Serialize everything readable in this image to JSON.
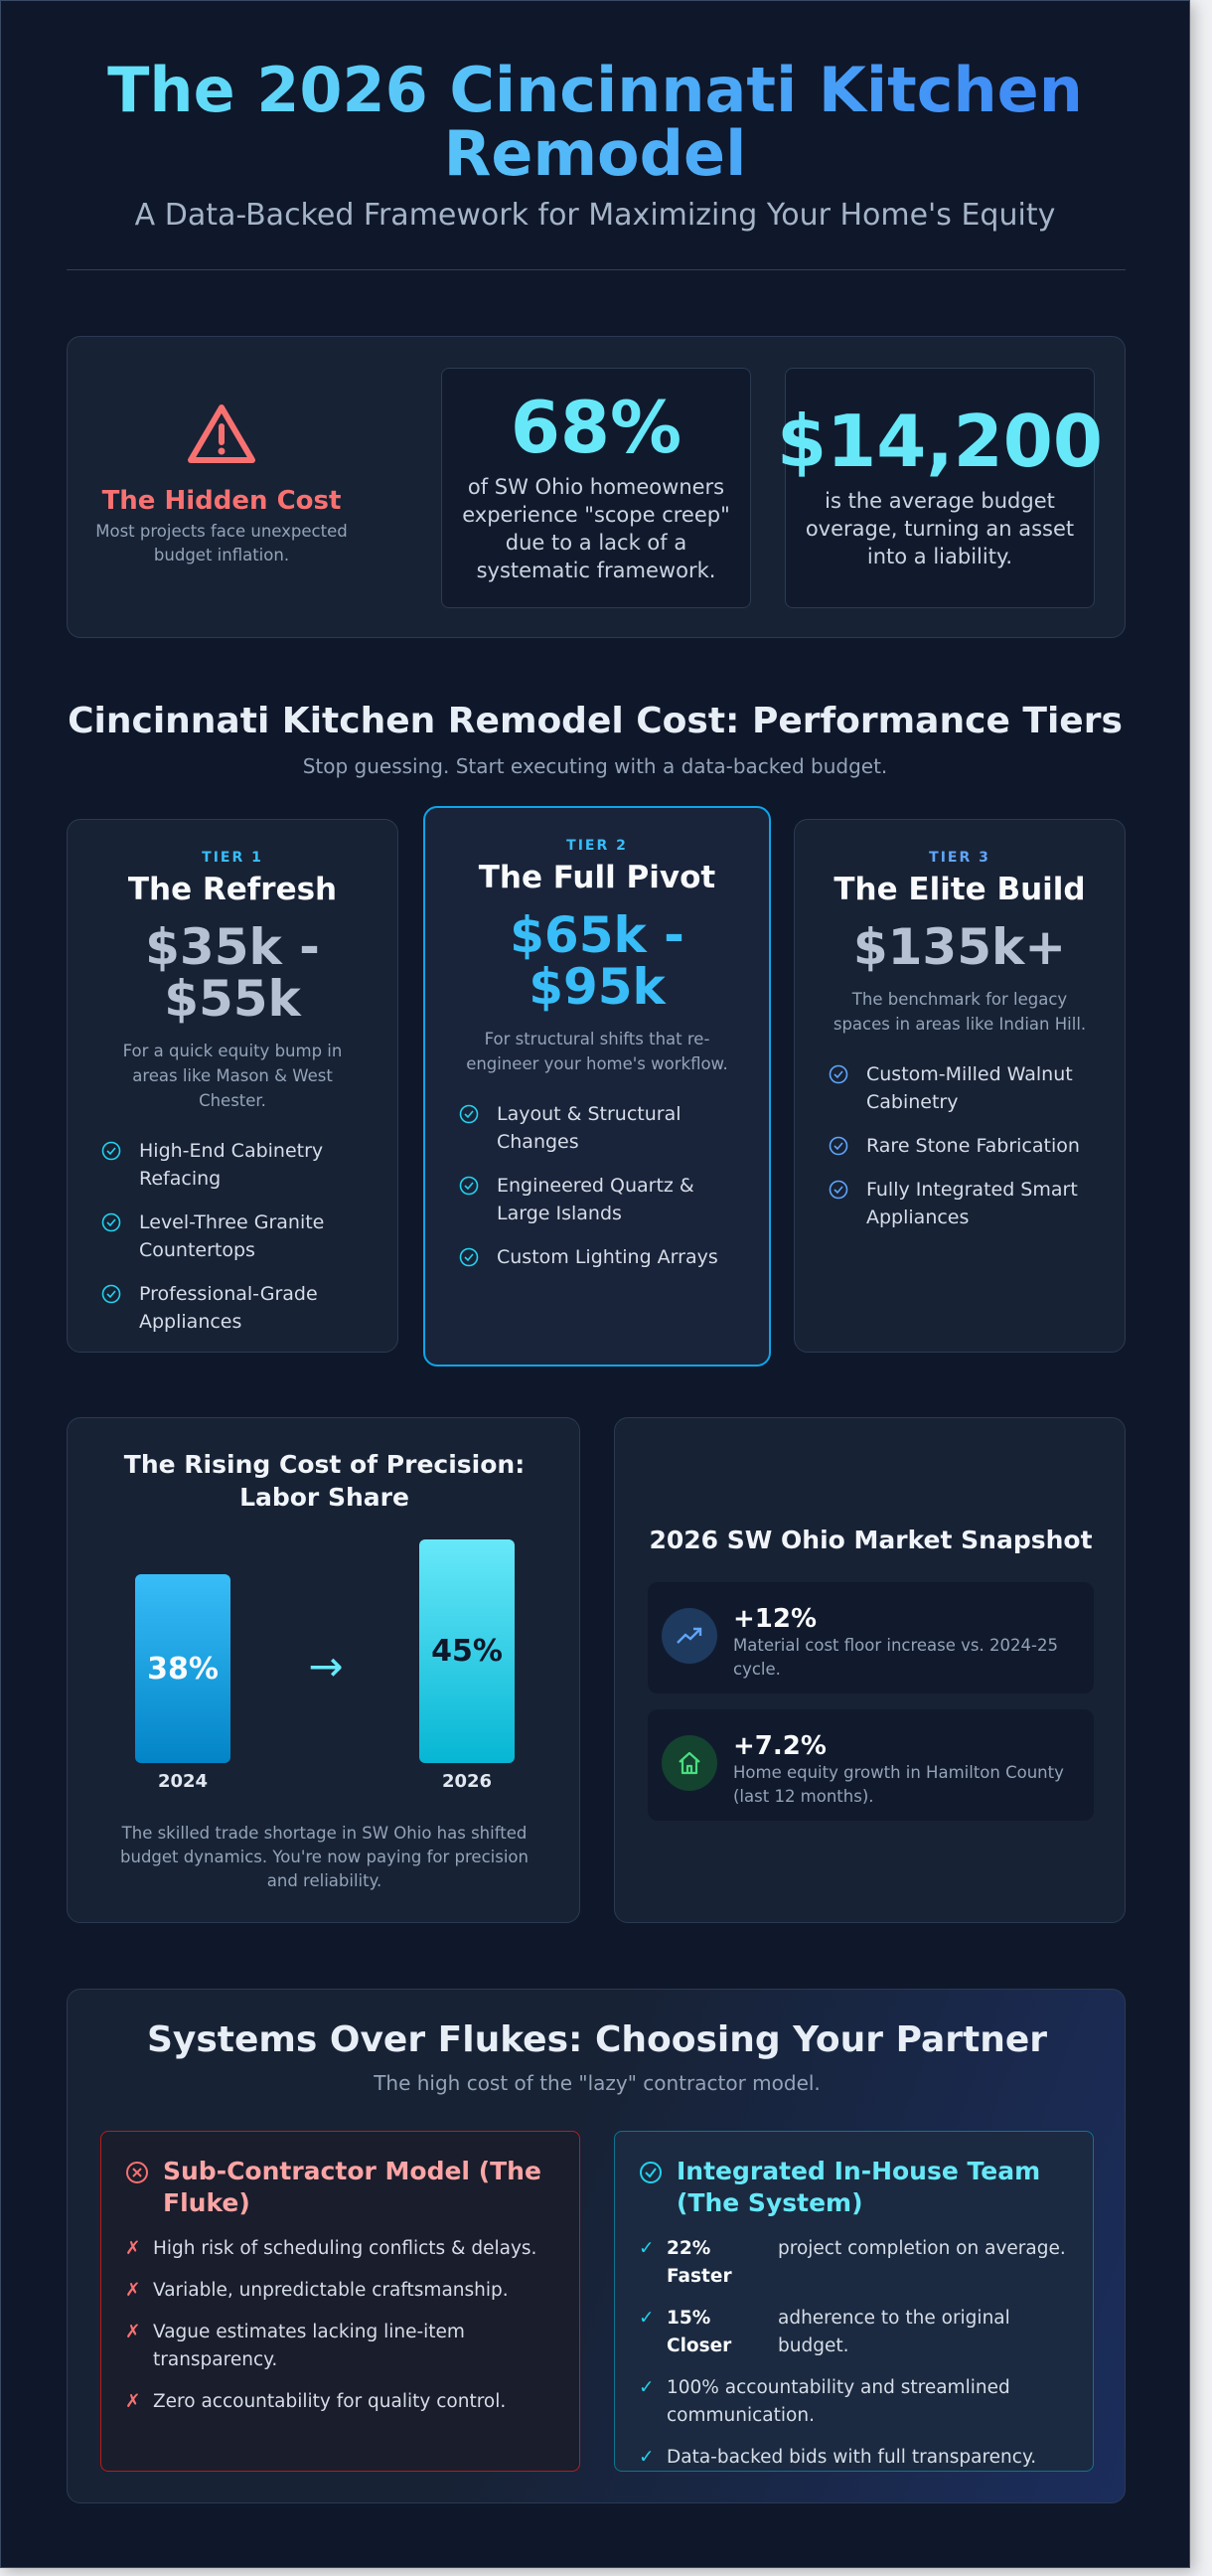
{
  "header": {
    "title": "The 2026 Cincinnati Kitchen Remodel",
    "subtitle": "A Data-Backed Framework for Maximizing Your Home's Equity"
  },
  "hidden_cost": {
    "title": "The Hidden Cost",
    "text": "Most projects face unexpected budget inflation."
  },
  "stats": [
    {
      "value": "68%",
      "text": "of SW Ohio homeowners experience \"scope creep\" due to a lack of a systematic framework."
    },
    {
      "value": "$14,200",
      "text": "is the average budget overage, turning an asset into a liability."
    }
  ],
  "tiers_section": {
    "title": "Cincinnati Kitchen Remodel Cost: Performance Tiers",
    "subtitle": "Stop guessing. Start executing with a data-backed budget."
  },
  "tiers": [
    {
      "label": "TIER 1",
      "name": "The Refresh",
      "price": "$35k - $55k",
      "description": "For a quick equity bump in areas like Mason & West Chester.",
      "features": [
        "High-End Cabinetry Refacing",
        "Level-Three Granite Countertops",
        "Professional-Grade Appliances"
      ]
    },
    {
      "label": "TIER 2",
      "name": "The Full Pivot",
      "price": "$65k - $95k",
      "description": "For structural shifts that re-engineer your home's workflow.",
      "features": [
        "Layout & Structural Changes",
        "Engineered Quartz & Large Islands",
        "Custom Lighting Arrays"
      ]
    },
    {
      "label": "TIER 3",
      "name": "The Elite Build",
      "price": "$135k+",
      "description": "The benchmark for legacy spaces in areas like Indian Hill.",
      "features": [
        "Custom-Milled Walnut Cabinetry",
        "Rare Stone Fabrication",
        "Fully Integrated Smart Appliances"
      ]
    }
  ],
  "labor": {
    "title": "The Rising Cost of Precision: Labor Share",
    "bars": [
      {
        "value": "38%",
        "year": "2024"
      },
      {
        "value": "45%",
        "year": "2026"
      }
    ],
    "note": "The skilled trade shortage in SW Ohio has shifted budget dynamics. You're now paying for precision and reliability."
  },
  "market": {
    "title": "2026 SW Ohio Market Snapshot",
    "items": [
      {
        "value": "+12%",
        "text": "Material cost floor increase vs. 2024-25 cycle."
      },
      {
        "value": "+7.2%",
        "text": "Home equity growth in Hamilton County (last 12 months)."
      }
    ]
  },
  "partner": {
    "title": "Systems Over Flukes: Choosing Your Partner",
    "subtitle": "The high cost of the \"lazy\" contractor model.",
    "fluke": {
      "title": "Sub-Contractor Model (The Fluke)",
      "items": [
        {
          "text": "High risk of scheduling conflicts & delays."
        },
        {
          "text": "Variable, unpredictable craftsmanship."
        },
        {
          "text": "Vague estimates lacking line-item transparency."
        },
        {
          "text": "Zero accountability for quality control."
        }
      ]
    },
    "system": {
      "title": "Integrated In-House Team (The System)",
      "items": [
        {
          "strong": "22% Faster",
          "text": "project completion on average."
        },
        {
          "strong": "15% Closer",
          "text": "adherence to the original budget."
        },
        {
          "text": "100% accountability and streamlined communication."
        },
        {
          "text": "Data-backed bids with full transparency."
        }
      ]
    }
  }
}
